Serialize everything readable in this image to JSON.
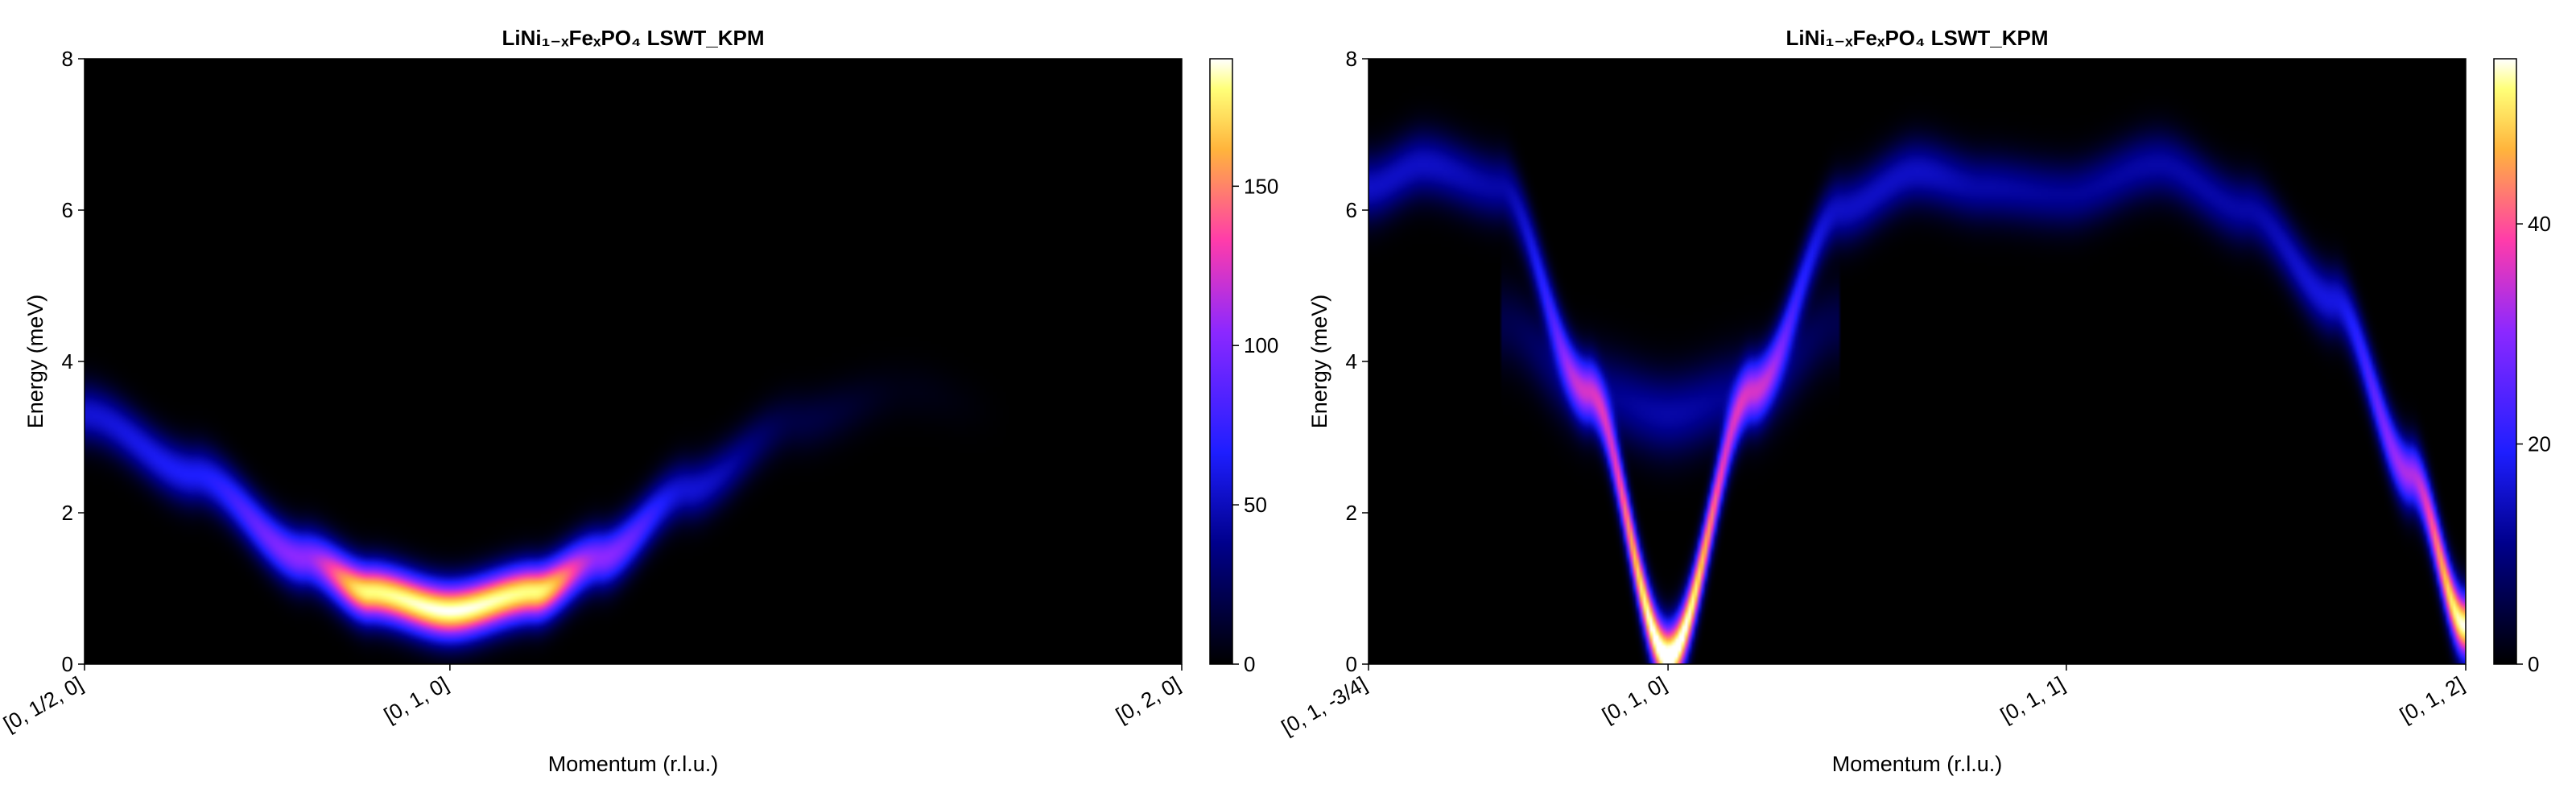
{
  "chart_data": [
    {
      "type": "heatmap",
      "title": "LiNi₁₋ₓFeₓPO₄ LSWT_KPM",
      "xlabel": "Momentum (r.l.u.)",
      "ylabel": "Energy (meV)",
      "xlim": [
        0,
        1
      ],
      "ylim": [
        0,
        8
      ],
      "y_ticks": [
        0,
        2,
        4,
        6,
        8
      ],
      "x_ticks": [
        {
          "pos": 0.0,
          "label": "[0, 1/2, 0]"
        },
        {
          "pos": 0.333,
          "label": "[0, 1, 0]"
        },
        {
          "pos": 1.0,
          "label": "[0, 2, 0]"
        }
      ],
      "colorbar": {
        "min": 0,
        "max": 190,
        "ticks": [
          0,
          50,
          100,
          150
        ],
        "colormap": "gnuplot2"
      },
      "dispersion": {
        "x": [
          0.0,
          0.1,
          0.2,
          0.26,
          0.333,
          0.41,
          0.47,
          0.55,
          0.65,
          0.75,
          0.85,
          1.0
        ],
        "energy": [
          3.3,
          2.5,
          1.4,
          0.95,
          0.7,
          0.95,
          1.4,
          2.3,
          3.2,
          3.6,
          3.3,
          3.0
        ],
        "intensity": [
          45,
          55,
          95,
          180,
          190,
          180,
          95,
          45,
          12,
          3,
          0,
          0
        ],
        "width_meV": 0.35
      }
    },
    {
      "type": "heatmap",
      "title": "LiNi₁₋ₓFeₓPO₄ LSWT_KPM",
      "xlabel": "Momentum (r.l.u.)",
      "ylabel": "Energy (meV)",
      "xlim": [
        0,
        1
      ],
      "ylim": [
        0,
        8
      ],
      "y_ticks": [
        0,
        2,
        4,
        6,
        8
      ],
      "x_ticks": [
        {
          "pos": 0.0,
          "label": "[0, 1, -3/4]"
        },
        {
          "pos": 0.273,
          "label": "[0, 1, 0]"
        },
        {
          "pos": 0.636,
          "label": "[0, 1, 1]"
        },
        {
          "pos": 1.0,
          "label": "[0, 1, 2]"
        }
      ],
      "colorbar": {
        "min": 0,
        "max": 55,
        "ticks": [
          0,
          20,
          40
        ],
        "colormap": "gnuplot2"
      },
      "dispersion": {
        "x": [
          0.0,
          0.05,
          0.12,
          0.2,
          0.273,
          0.35,
          0.43,
          0.5,
          0.56,
          0.636,
          0.72,
          0.8,
          0.88,
          0.95,
          1.0
        ],
        "energy": [
          6.3,
          6.6,
          6.3,
          3.6,
          0.1,
          3.6,
          6.0,
          6.5,
          6.3,
          6.2,
          6.6,
          6.0,
          4.8,
          2.5,
          0.5
        ],
        "intensity": [
          12,
          12,
          10,
          25,
          60,
          25,
          12,
          12,
          10,
          9,
          10,
          10,
          14,
          30,
          55
        ],
        "width_meV": 0.4
      },
      "flat_mode": {
        "x": [
          0.12,
          0.2,
          0.273,
          0.35,
          0.43
        ],
        "energy": [
          4.5,
          3.6,
          3.3,
          3.6,
          4.5
        ],
        "intensity": [
          4,
          8,
          10,
          8,
          4
        ]
      }
    }
  ]
}
